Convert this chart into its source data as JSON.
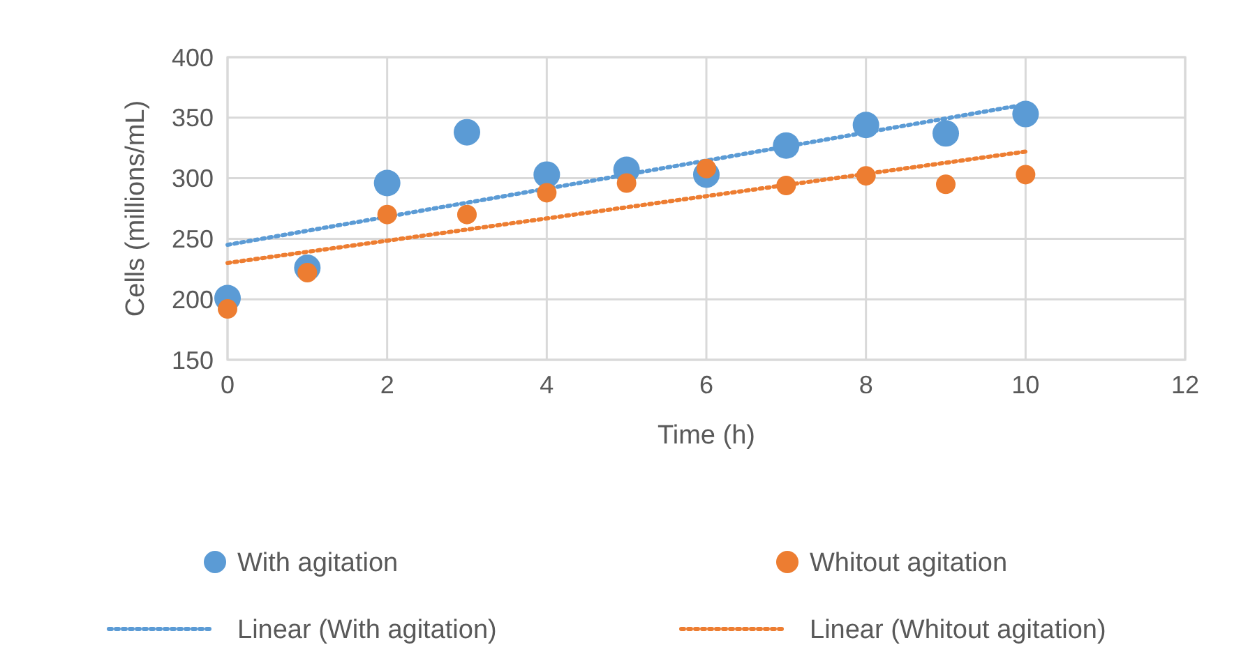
{
  "chart_data": {
    "type": "scatter",
    "xlabel": "Time (h)",
    "ylabel": "Cells (millions/mL)",
    "xlim": [
      0,
      12
    ],
    "xticks": [
      0,
      2,
      4,
      6,
      8,
      10,
      12
    ],
    "ylim": [
      150,
      400
    ],
    "yticks": [
      150,
      200,
      250,
      300,
      350,
      400
    ],
    "grid": true,
    "legend": "bottom",
    "marker": "circle",
    "series": [
      {
        "name": "With agitation",
        "color": "#5b9bd5",
        "x": [
          0,
          1,
          2,
          3,
          4,
          5,
          6,
          7,
          8,
          9,
          10
        ],
        "values": [
          201,
          226,
          296,
          338,
          303,
          307,
          303,
          327,
          344,
          337,
          353
        ]
      },
      {
        "name": "Whitout agitation",
        "color": "#ed7d31",
        "x": [
          0,
          1,
          2,
          3,
          4,
          5,
          6,
          7,
          8,
          9,
          10
        ],
        "values": [
          192,
          222,
          270,
          270,
          288,
          296,
          308,
          294,
          302,
          295,
          303
        ]
      },
      {
        "name": "Linear (With agitation)",
        "type": "line",
        "line_style": "dotted",
        "marker": "none",
        "color": "#5b9bd5",
        "x": [
          0,
          10
        ],
        "values": [
          245,
          361
        ]
      },
      {
        "name": "Linear (Whitout agitation)",
        "type": "line",
        "line_style": "dotted",
        "marker": "none",
        "color": "#ed7d31",
        "x": [
          0,
          10
        ],
        "values": [
          230,
          322
        ]
      }
    ]
  }
}
